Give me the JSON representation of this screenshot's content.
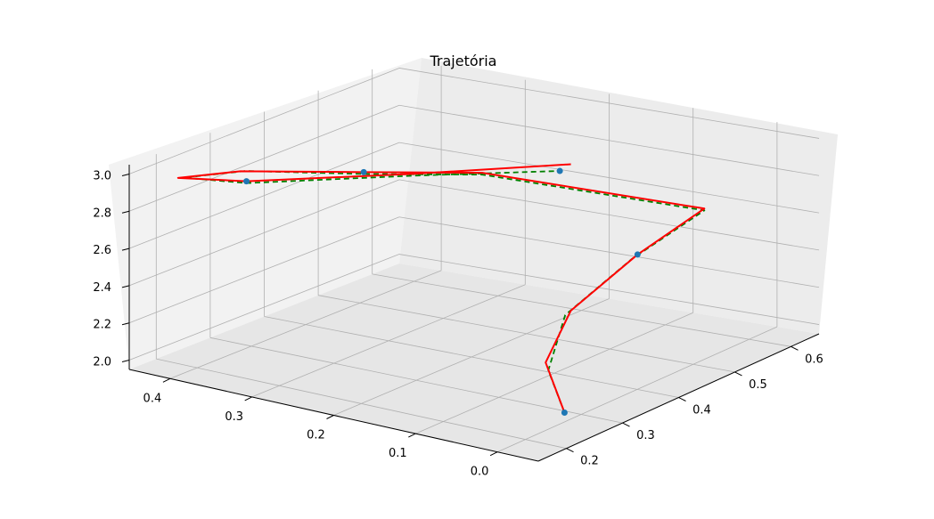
{
  "chart_data": {
    "type": "line",
    "projection": "3d",
    "title": "Trajetória",
    "xlabel": "",
    "ylabel": "",
    "zlabel": "",
    "grid": true,
    "legend": "none",
    "x_ticks": [
      "0.2",
      "0.3",
      "0.4",
      "0.5",
      "0.6"
    ],
    "y_ticks": [
      "0.0",
      "0.1",
      "0.2",
      "0.3",
      "0.4"
    ],
    "z_ticks": [
      "2.0",
      "2.2",
      "2.4",
      "2.6",
      "2.8",
      "3.0"
    ],
    "xlim": [
      0.15,
      0.65
    ],
    "ylim": [
      -0.05,
      0.45
    ],
    "zlim": [
      1.95,
      3.05
    ],
    "series": [
      {
        "style": "dashed",
        "color": "#008000",
        "points": [
          [
            0.27,
            0.0,
            2.0
          ],
          [
            0.3,
            0.04,
            2.15
          ],
          [
            0.36,
            0.06,
            2.35
          ],
          [
            0.45,
            0.04,
            2.55
          ],
          [
            0.52,
            0.0,
            2.75
          ],
          [
            0.45,
            0.22,
            2.85
          ],
          [
            0.4,
            0.33,
            2.82
          ],
          [
            0.32,
            0.42,
            2.85
          ],
          [
            0.22,
            0.43,
            2.92
          ],
          [
            0.2,
            0.34,
            3.0
          ],
          [
            0.3,
            0.2,
            3.05
          ],
          [
            0.38,
            0.08,
            3.08
          ]
        ]
      },
      {
        "style": "solid",
        "color": "#ff0000",
        "points": [
          [
            0.27,
            0.0,
            2.0
          ],
          [
            0.31,
            0.05,
            2.17
          ],
          [
            0.37,
            0.06,
            2.36
          ],
          [
            0.46,
            0.04,
            2.56
          ],
          [
            0.52,
            0.0,
            2.76
          ],
          [
            0.45,
            0.22,
            2.86
          ],
          [
            0.4,
            0.33,
            2.83
          ],
          [
            0.31,
            0.42,
            2.86
          ],
          [
            0.21,
            0.43,
            2.93
          ],
          [
            0.2,
            0.34,
            3.01
          ],
          [
            0.3,
            0.2,
            3.06
          ],
          [
            0.4,
            0.08,
            3.09
          ]
        ]
      }
    ],
    "markers": {
      "color": "#1f77b4",
      "points": [
        [
          0.27,
          0.0,
          2.0
        ],
        [
          0.46,
          0.04,
          2.56
        ],
        [
          0.4,
          0.33,
          2.83
        ],
        [
          0.2,
          0.34,
          3.01
        ],
        [
          0.38,
          0.08,
          3.08
        ]
      ]
    },
    "pane_color": "#f2f2f2",
    "grid_color": "#b0b0b0"
  }
}
